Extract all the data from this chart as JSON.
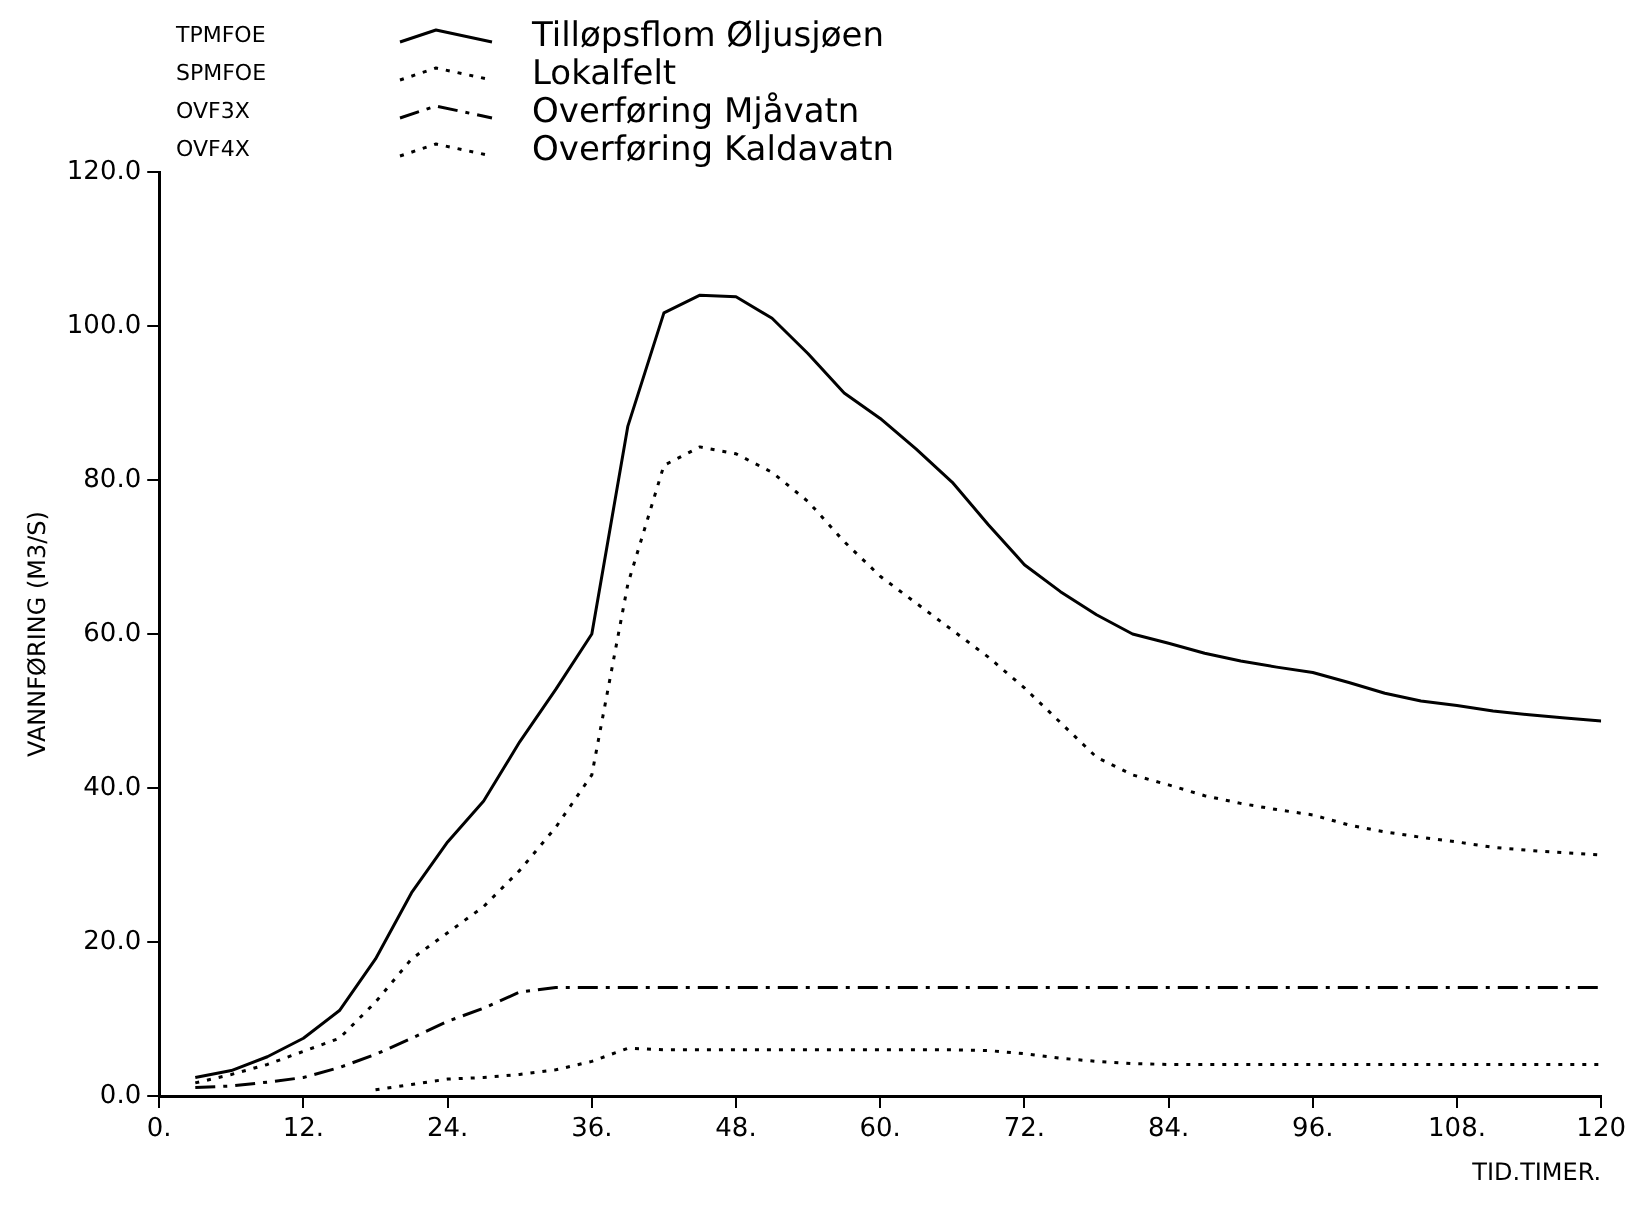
{
  "chart_data": {
    "type": "line",
    "xlabel": "TID.TIMER.",
    "ylabel": "VANNFØRING (M3/S)",
    "xlim": [
      0,
      120
    ],
    "ylim": [
      0,
      120
    ],
    "xticks": [
      {
        "value": 0,
        "label": "0."
      },
      {
        "value": 12,
        "label": "12."
      },
      {
        "value": 24,
        "label": "24."
      },
      {
        "value": 36,
        "label": "36."
      },
      {
        "value": 48,
        "label": "48."
      },
      {
        "value": 60,
        "label": "60."
      },
      {
        "value": 72,
        "label": "72."
      },
      {
        "value": 84,
        "label": "84."
      },
      {
        "value": 96,
        "label": "96."
      },
      {
        "value": 108,
        "label": "108."
      },
      120
    ],
    "yticks": [
      {
        "value": 0,
        "label": "0.0"
      },
      {
        "value": 20,
        "label": "20.0"
      },
      {
        "value": 40,
        "label": "40.0"
      },
      {
        "value": 60,
        "label": "60.0"
      },
      {
        "value": 80,
        "label": "80.0"
      },
      {
        "value": 100,
        "label": "100.0"
      },
      {
        "value": 120,
        "label": "120.0"
      }
    ],
    "grid": false,
    "legend": "top left",
    "marker": "none",
    "annotations": [
      "TPMFOE",
      "SPMFOE",
      "OVF3X",
      "OVF4X"
    ],
    "series": [
      {
        "name": "Tilløpsflom Øljusjøen",
        "color": "#000000",
        "line_style": "solid",
        "x": [
          3,
          6,
          9,
          12,
          15,
          18,
          21,
          24,
          27,
          30,
          33,
          36,
          39,
          42,
          45,
          48,
          51,
          54,
          57,
          60,
          63,
          66,
          69,
          72,
          75,
          78,
          81,
          84,
          87,
          90,
          93,
          96,
          99,
          102,
          105,
          108,
          111,
          114,
          117,
          120
        ],
        "values": [
          2.4,
          3.3,
          5.1,
          7.5,
          11.1,
          17.8,
          26.4,
          33,
          38.3,
          46,
          52.8,
          60,
          87,
          101.7,
          104,
          103.8,
          101,
          96.4,
          91.3,
          88,
          84,
          79.7,
          74.2,
          69,
          65.5,
          62.5,
          60,
          58.8,
          57.5,
          56.5,
          55.7,
          55,
          53.7,
          52.3,
          51.3,
          50.7,
          50,
          49.5,
          49.1,
          48.7
        ]
      },
      {
        "name": "Lokalfelt",
        "color": "#000000",
        "line_style": "dotted",
        "x": [
          3,
          6,
          9,
          12,
          15,
          18,
          21,
          24,
          27,
          30,
          33,
          36,
          39,
          42,
          45,
          48,
          51,
          54,
          57,
          60,
          63,
          66,
          69,
          72,
          75,
          78,
          81,
          84,
          87,
          90,
          93,
          96,
          99,
          102,
          105,
          108,
          111,
          114,
          117,
          120
        ],
        "values": [
          1.7,
          2.8,
          4.1,
          5.8,
          7.5,
          12.2,
          17.8,
          21.2,
          24.6,
          29.3,
          34.9,
          41.7,
          66.5,
          81.9,
          84.3,
          83.4,
          81,
          77.2,
          72,
          67.5,
          64,
          60.5,
          57,
          53,
          48.5,
          44,
          41.7,
          40.4,
          39,
          38,
          37.2,
          36.5,
          35.2,
          34.3,
          33.6,
          33,
          32.3,
          31.9,
          31.6,
          31.3
        ]
      },
      {
        "name": "Overføring Mjåvatn",
        "color": "#000000",
        "line_style": "dashed",
        "x": [
          3,
          6,
          9,
          12,
          15,
          18,
          21,
          24,
          27,
          30,
          33,
          60,
          90,
          120
        ],
        "values": [
          1.1,
          1.3,
          1.8,
          2.4,
          3.7,
          5.4,
          7.5,
          9.7,
          11.4,
          13.5,
          14.1,
          14.1,
          14.1,
          14.1
        ]
      },
      {
        "name": "Overføring Kaldavatn",
        "color": "#000000",
        "line_style": "dotted",
        "x": [
          18,
          21,
          24,
          27,
          30,
          33,
          36,
          39,
          42,
          45,
          48,
          51,
          54,
          57,
          60,
          63,
          66,
          69,
          72,
          75,
          78,
          81,
          84,
          90,
          96,
          102,
          108,
          114,
          120
        ],
        "values": [
          0.8,
          1.5,
          2.2,
          2.4,
          2.8,
          3.4,
          4.5,
          6.2,
          6,
          6,
          6,
          6,
          6,
          6,
          6,
          6,
          6,
          5.9,
          5.5,
          4.9,
          4.5,
          4.2,
          4.1,
          4.1,
          4.1,
          4.1,
          4.1,
          4.1,
          4.1
        ]
      }
    ]
  }
}
